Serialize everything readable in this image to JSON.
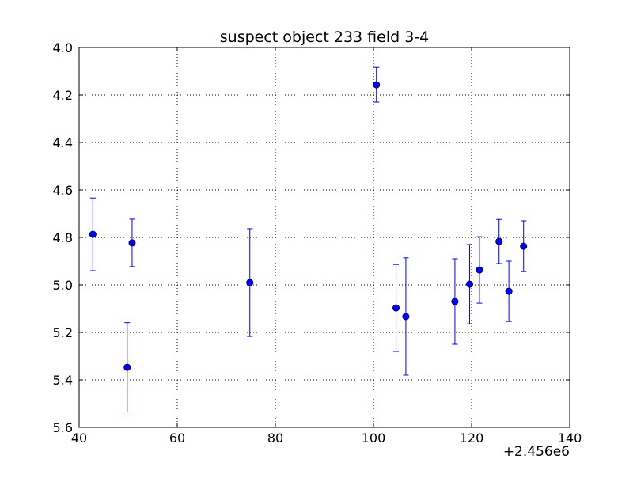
{
  "chart_data": {
    "type": "scatter",
    "title": "suspect object 233 field 3-4",
    "xlabel": "",
    "ylabel": "",
    "x_offset_label": "+2.456e6",
    "xlim": [
      40,
      140
    ],
    "ylim": [
      4.0,
      5.6
    ],
    "y_inverted": true,
    "grid": true,
    "x_ticks": [
      "40",
      "60",
      "80",
      "100",
      "120",
      "140"
    ],
    "y_ticks": [
      "4.0",
      "4.2",
      "4.4",
      "4.6",
      "4.8",
      "5.0",
      "5.2",
      "5.4",
      "5.6"
    ],
    "marker_color": "#0000ff",
    "series": [
      {
        "points": [
          {
            "x": 42.8,
            "y": 4.787,
            "err": 0.153
          },
          {
            "x": 49.8,
            "y": 5.347,
            "err": 0.188
          },
          {
            "x": 50.8,
            "y": 4.823,
            "err": 0.1
          },
          {
            "x": 74.8,
            "y": 4.99,
            "err": 0.227
          },
          {
            "x": 100.6,
            "y": 4.157,
            "err": 0.073
          },
          {
            "x": 104.6,
            "y": 5.097,
            "err": 0.183
          },
          {
            "x": 106.6,
            "y": 5.133,
            "err": 0.247
          },
          {
            "x": 116.6,
            "y": 5.07,
            "err": 0.18
          },
          {
            "x": 119.6,
            "y": 4.997,
            "err": 0.167
          },
          {
            "x": 121.6,
            "y": 4.937,
            "err": 0.14
          },
          {
            "x": 125.6,
            "y": 4.817,
            "err": 0.093
          },
          {
            "x": 127.6,
            "y": 5.027,
            "err": 0.127
          },
          {
            "x": 130.6,
            "y": 4.837,
            "err": 0.107
          }
        ]
      }
    ]
  }
}
